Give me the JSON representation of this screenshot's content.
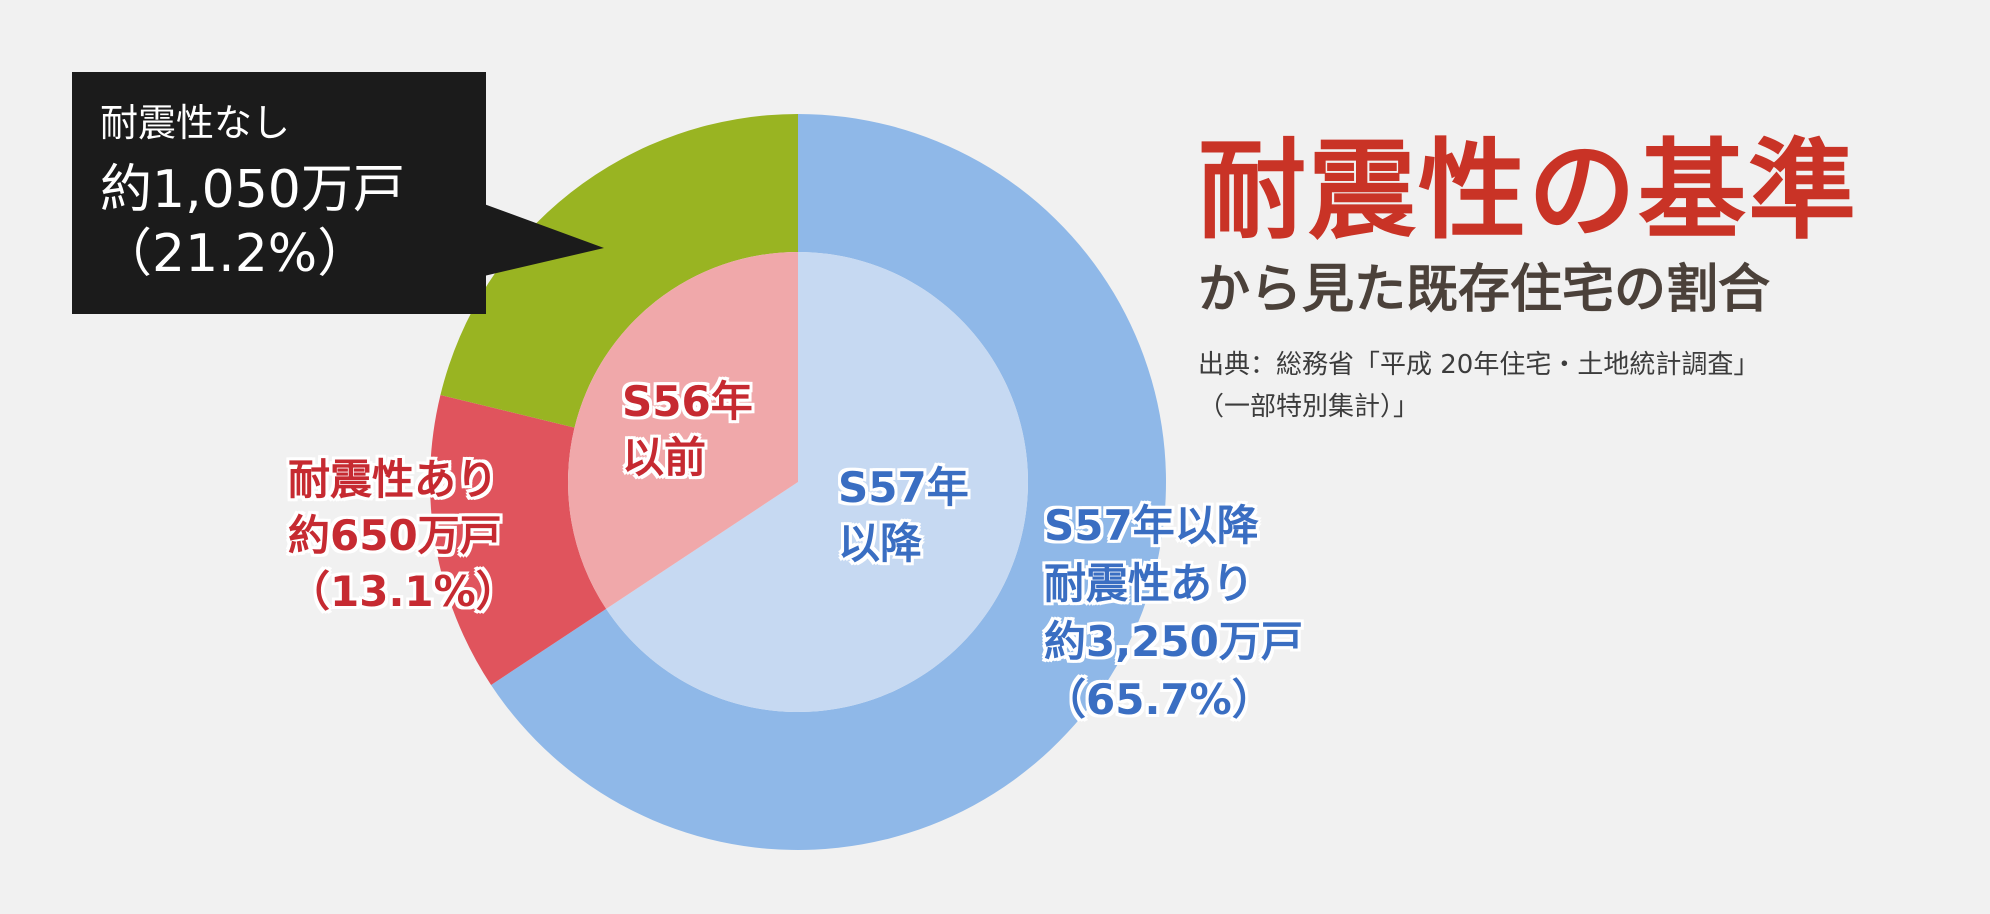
{
  "chart_data": {
    "type": "pie",
    "title": "耐震性の基準",
    "subtitle": "から見た既存住宅の割合",
    "source_lines": [
      "出典：総務省「平成 20年住宅・土地統計調査」",
      "（一部特別集計）」"
    ],
    "outer_ring": [
      {
        "name": "S57年以降 耐震性あり",
        "value_text": "約3,250万戸",
        "percent_text": "（65.7%）",
        "value": 65.7,
        "color": "#8fb8e8"
      },
      {
        "name": "耐震性あり",
        "value_text": "約650万戸",
        "percent_text": "（13.1%）",
        "value": 13.1,
        "color": "#e0545d"
      },
      {
        "name": "耐震性なし",
        "value_text": "約1,050万戸",
        "percent_text": "（21.2%）",
        "value": 21.2,
        "color": "#99b422"
      }
    ],
    "inner_ring": [
      {
        "name": "S57年以降",
        "line1": "S57年",
        "line2": "以降",
        "value": 65.7,
        "color": "#c6d9f2"
      },
      {
        "name": "S56年以前",
        "line1": "S56年",
        "line2": "以前",
        "value": 34.3,
        "color": "#f0a8aa"
      }
    ],
    "labels": {
      "red_name": "耐震性あり",
      "blue_name_line1": "S57年以降",
      "blue_name_line2": "耐震性あり",
      "callout_name": "耐震性なし"
    }
  }
}
